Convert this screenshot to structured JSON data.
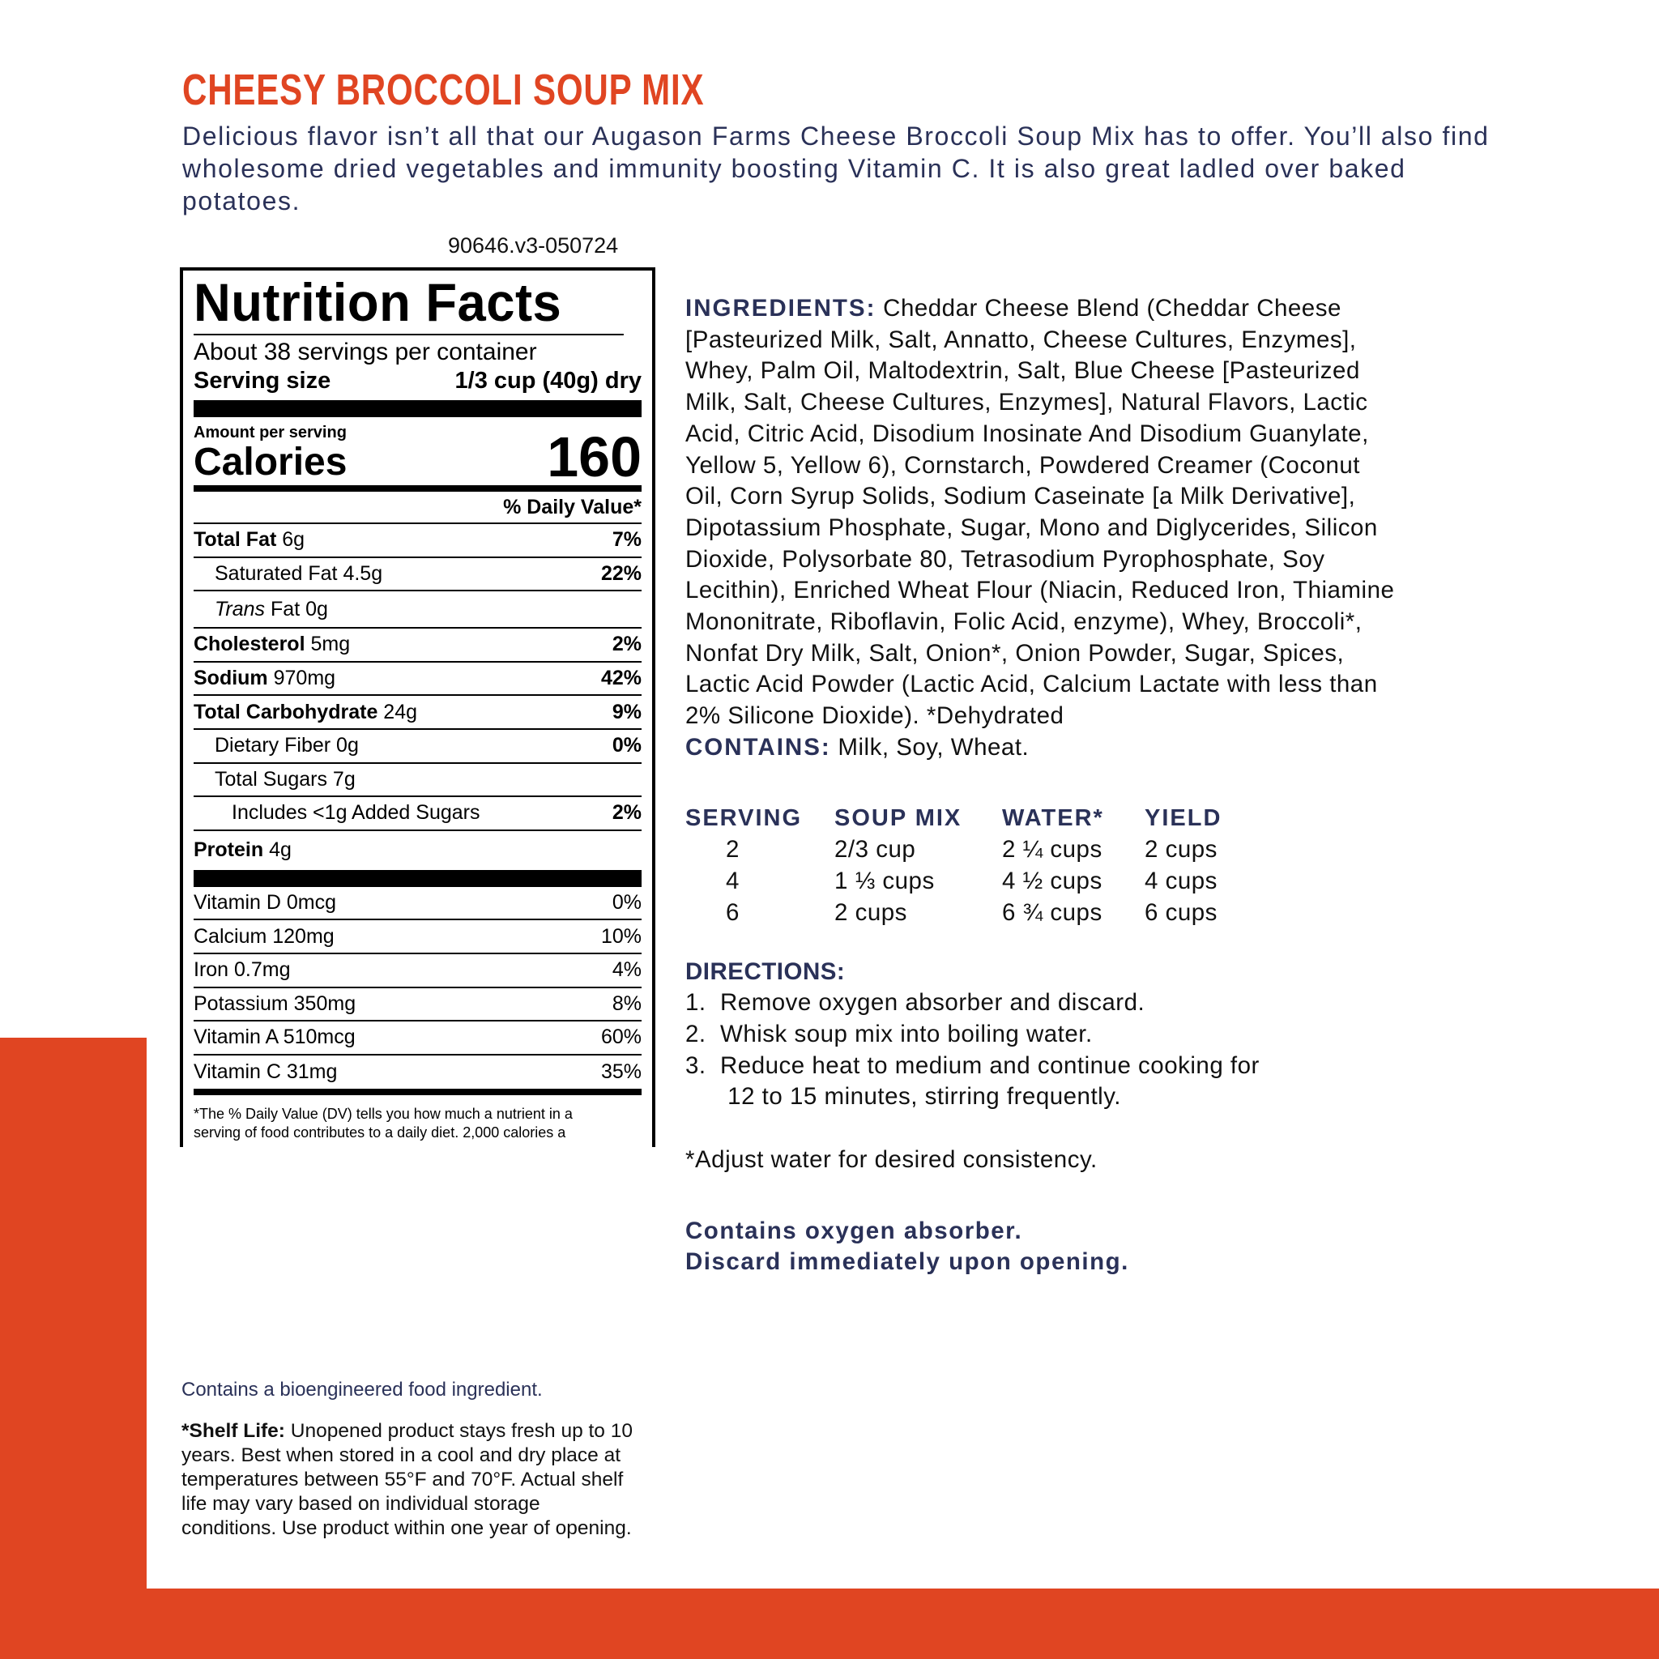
{
  "colors": {
    "accent": "#E04522",
    "navy": "#2a3158"
  },
  "title": "CHEESY BROCCOLI SOUP MIX",
  "description": "Delicious flavor isn’t all that our Augason Farms Cheese Broccoli Soup Mix has to offer. You’ll also find wholesome dried vegetables and immunity boosting Vitamin C. It is also great ladled over baked potatoes.",
  "code": "90646.v3-050724",
  "nutrition": {
    "heading": "Nutrition Facts",
    "servings": "About 38 servings per container",
    "serving_size_label": "Serving size",
    "serving_size": "1/3 cup (40g) dry",
    "amount_label": "Amount per serving",
    "calories_label": "Calories",
    "calories": "160",
    "dv_label": "% Daily Value*",
    "rows": [
      {
        "name": "Total Fat",
        "amount": "6g",
        "dv": "7%"
      },
      {
        "name": "Saturated Fat",
        "amount": "4.5g",
        "dv": "22%"
      },
      {
        "name": "Trans",
        "name2": "Fat",
        "amount": "0g",
        "dv": ""
      },
      {
        "name": "Cholesterol",
        "amount": "5mg",
        "dv": "2%"
      },
      {
        "name": "Sodium",
        "amount": "970mg",
        "dv": "42%"
      },
      {
        "name": "Total Carbohydrate",
        "amount": "24g",
        "dv": "9%"
      },
      {
        "name": "Dietary Fiber",
        "amount": "0g",
        "dv": "0%"
      },
      {
        "name": "Total Sugars",
        "amount": "7g",
        "dv": ""
      },
      {
        "name": "Includes <1g Added Sugars",
        "amount": "",
        "dv": "2%"
      },
      {
        "name": "Protein",
        "amount": "4g",
        "dv": ""
      }
    ],
    "vitamins": [
      {
        "name": "Vitamin D 0mcg",
        "dv": "0%"
      },
      {
        "name": "Calcium 120mg",
        "dv": "10%"
      },
      {
        "name": "Iron 0.7mg",
        "dv": "4%"
      },
      {
        "name": "Potassium 350mg",
        "dv": "8%"
      },
      {
        "name": "Vitamin A 510mcg",
        "dv": "60%"
      },
      {
        "name": "Vitamin C 31mg",
        "dv": "35%"
      }
    ],
    "footnote": [
      "*The % Daily Value (DV) tells you how much a nutrient in a",
      "serving of food contributes to a daily diet. 2,000 calories a"
    ]
  },
  "ingredients": {
    "label": "INGREDIENTS:",
    "lines": [
      " Cheddar Cheese Blend (Cheddar Cheese",
      "[Pasteurized Milk, Salt, Annatto, Cheese Cultures, Enzymes],",
      "Whey, Palm Oil, Maltodextrin, Salt, Blue Cheese [Pasteurized",
      "Milk, Salt, Cheese Cultures, Enzymes], Natural Flavors, Lactic",
      "Acid, Citric Acid, Disodium Inosinate And Disodium Guanylate,",
      "Yellow 5, Yellow 6), Cornstarch, Powdered Creamer (Coconut",
      "Oil, Corn Syrup Solids, Sodium Caseinate [a Milk Derivative],",
      "Dipotassium Phosphate, Sugar, Mono and Diglycerides, Silicon",
      "Dioxide, Polysorbate 80, Tetrasodium Pyrophosphate, Soy",
      "Lecithin), Enriched Wheat Flour (Niacin, Reduced Iron, Thiamine",
      "Mononitrate, Riboflavin, Folic Acid, enzyme), Whey, Broccoli*,",
      "Nonfat Dry Milk, Salt, Onion*, Onion Powder, Sugar, Spices,",
      "Lactic Acid Powder (Lactic Acid, Calcium Lactate with less than",
      "2% Silicone Dioxide). *Dehydrated"
    ],
    "contains_label": "CONTAINS:",
    "contains": " Milk, Soy, Wheat."
  },
  "prep_table": {
    "headers": [
      "SERVING",
      "SOUP MIX",
      "WATER*",
      "YIELD"
    ],
    "rows": [
      [
        "2",
        "2/3 cup",
        "2 ¼ cups",
        "2 cups"
      ],
      [
        "4",
        "1 ⅓ cups",
        "4 ½ cups",
        "4 cups"
      ],
      [
        "6",
        "2 cups",
        "6 ¾ cups",
        "6 cups"
      ]
    ]
  },
  "directions": {
    "label": "DIRECTIONS:",
    "steps": [
      "1.  Remove oxygen absorber and discard.",
      "2.  Whisk soup mix into boiling water.",
      "3.  Reduce heat to medium and continue cooking for",
      "      12 to 15 minutes, stirring frequently."
    ],
    "note": "*Adjust water for desired consistency."
  },
  "oxygen": [
    "Contains oxygen absorber.",
    "Discard immediately upon opening."
  ],
  "bioengineered": "Contains a bioengineered food ingredient.",
  "shelf_life": {
    "label": "*Shelf Life:",
    "text": " Unopened product stays fresh up to 10 years. Best when stored in a cool and dry place at temperatures between 55°F and 70°F. Actual shelf life may vary based on individual storage conditions. Use product within one year of opening."
  }
}
